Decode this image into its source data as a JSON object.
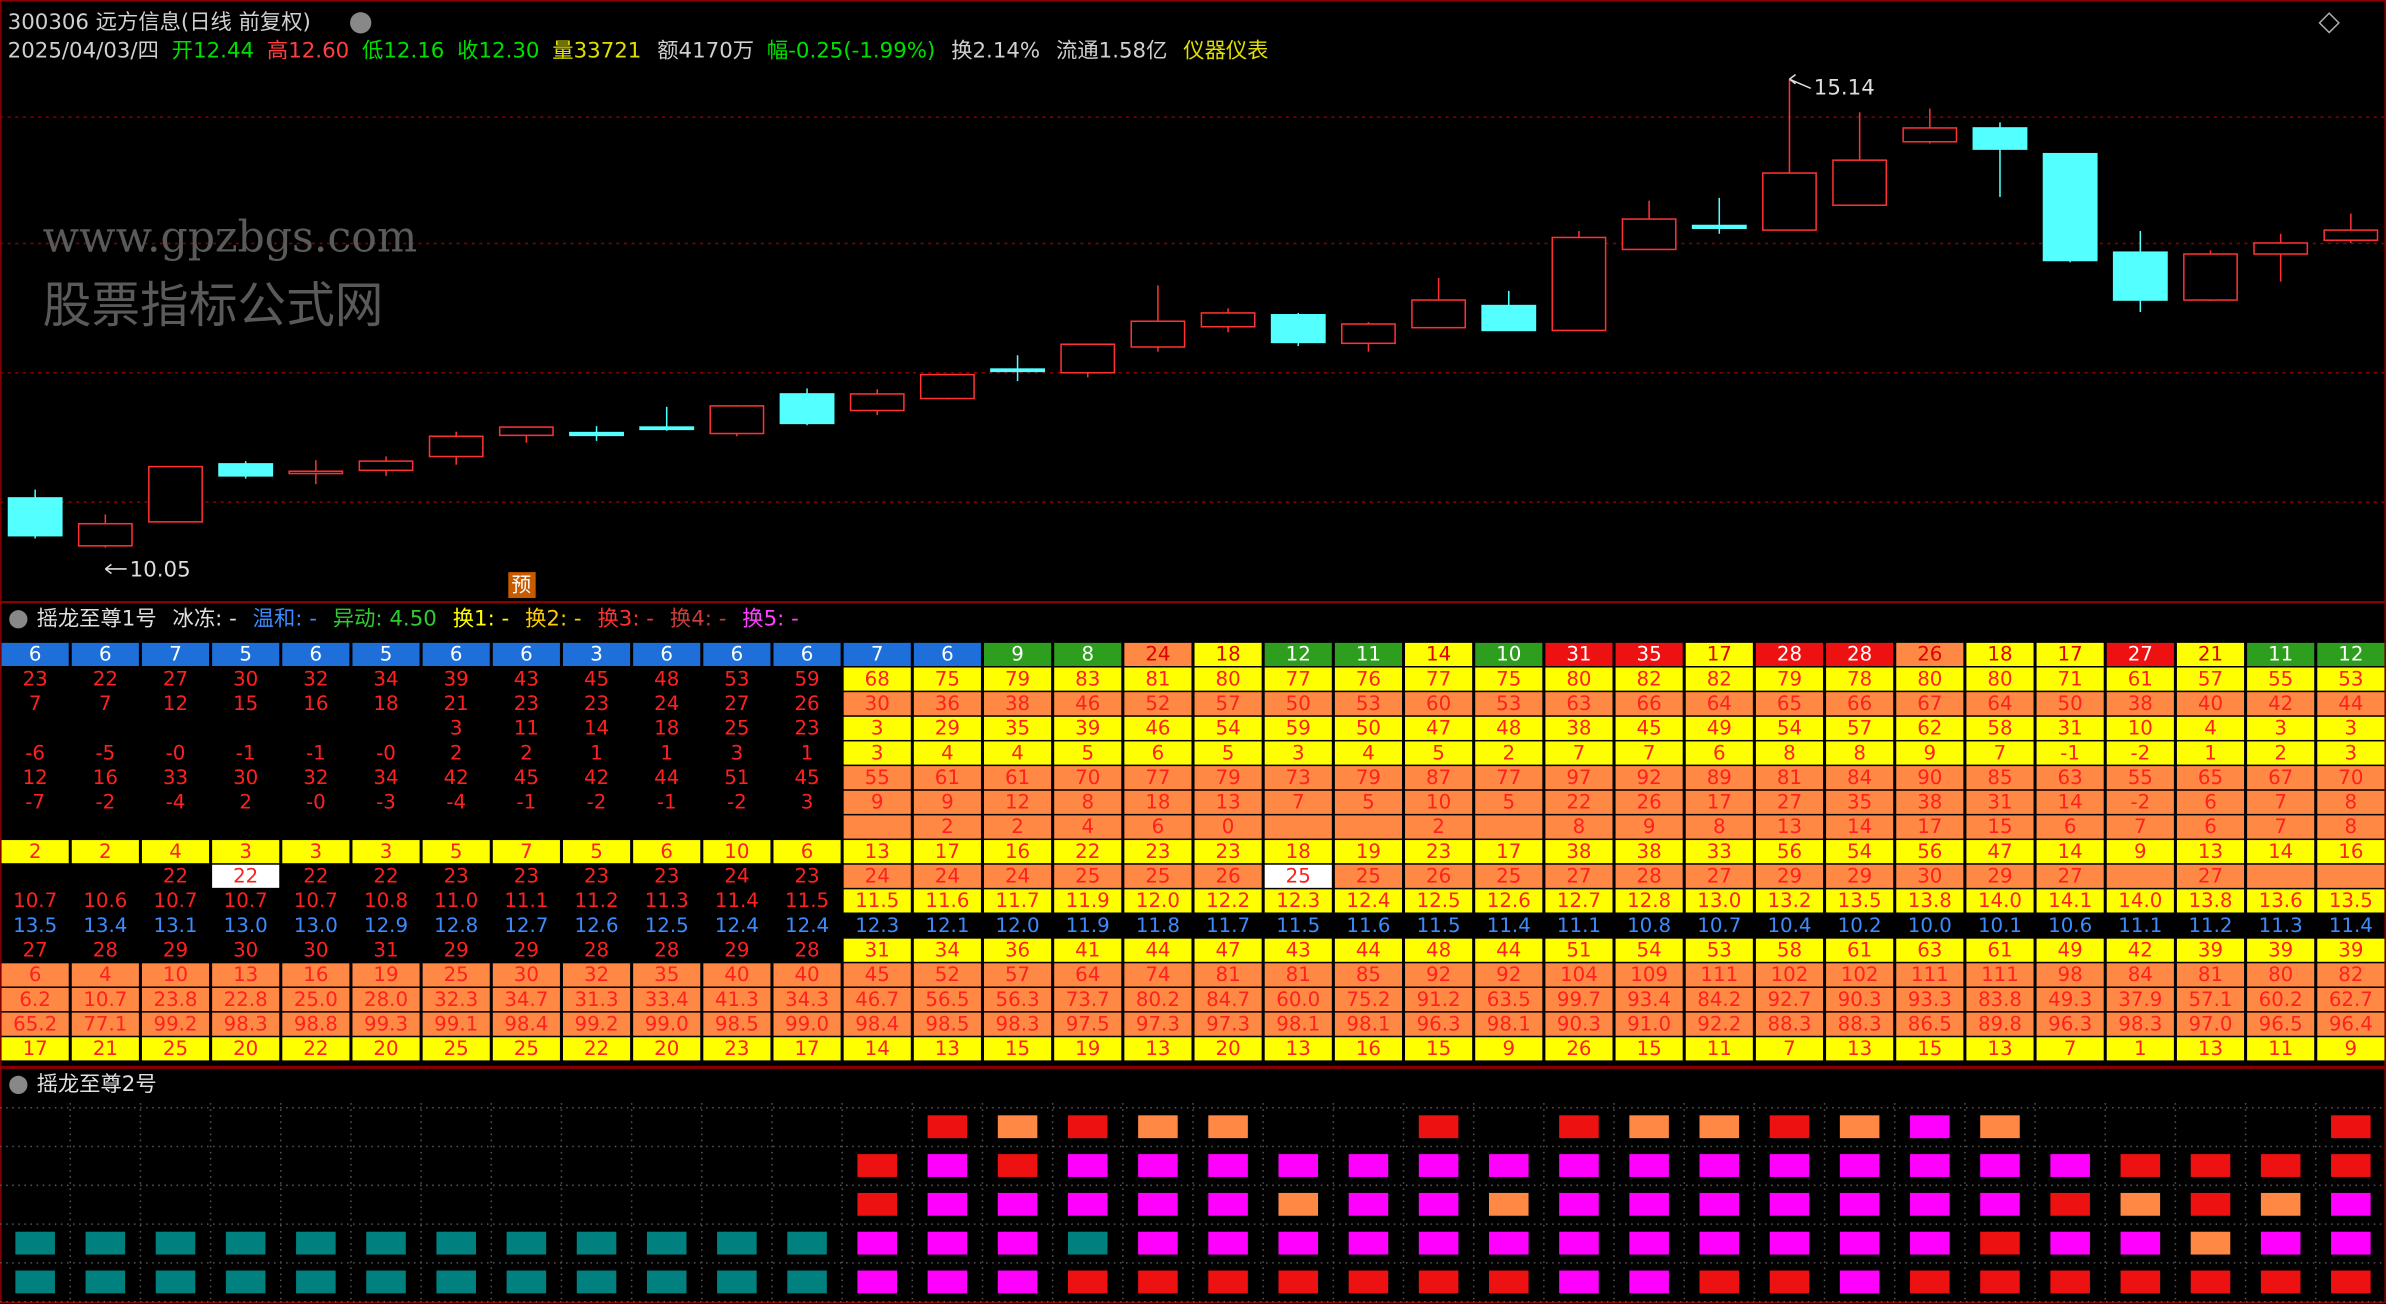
{
  "chart_data": {
    "type": "candlestick",
    "title": "300306 远方信息(日线 前复权)",
    "open": [
      10.59,
      10.07,
      10.33,
      10.96,
      10.86,
      10.89,
      11.04,
      11.27,
      11.3,
      11.36,
      11.29,
      11.72,
      11.54,
      11.67,
      11.99,
      11.95,
      12.23,
      12.45,
      12.58,
      12.27,
      12.44,
      12.68,
      12.41,
      13.29,
      13.55,
      13.5,
      13.77,
      14.46,
      14.61,
      14.33,
      13.26,
      12.74,
      13.24,
      13.39
    ],
    "high": [
      10.68,
      10.41,
      10.93,
      10.99,
      11.0,
      11.04,
      11.31,
      11.36,
      11.37,
      11.58,
      11.6,
      11.78,
      11.77,
      11.93,
      12.14,
      12.26,
      12.9,
      12.65,
      12.6,
      12.5,
      12.98,
      12.84,
      13.49,
      13.82,
      13.85,
      15.14,
      14.78,
      14.82,
      14.67,
      14.33,
      13.49,
      13.28,
      13.46,
      13.68
    ],
    "low": [
      10.15,
      10.05,
      10.33,
      10.8,
      10.74,
      10.83,
      10.95,
      11.19,
      11.21,
      11.32,
      11.26,
      11.38,
      11.49,
      11.66,
      11.86,
      11.9,
      12.18,
      12.39,
      12.24,
      12.18,
      12.44,
      12.41,
      12.41,
      13.29,
      13.46,
      13.5,
      13.77,
      14.44,
      13.86,
      13.15,
      12.61,
      12.73,
      12.94,
      13.36
    ],
    "close": [
      10.18,
      10.31,
      10.93,
      10.83,
      10.88,
      10.99,
      11.26,
      11.36,
      11.27,
      11.35,
      11.59,
      11.4,
      11.72,
      11.93,
      11.98,
      12.26,
      12.51,
      12.6,
      12.28,
      12.48,
      12.74,
      12.41,
      13.42,
      13.62,
      13.52,
      14.12,
      14.26,
      14.61,
      14.38,
      13.17,
      12.74,
      13.24,
      13.36,
      13.5
    ],
    "ylim": [
      9.47,
      16.0
    ],
    "up_color": "#ff3232",
    "down_color": "#54ffff",
    "annotations": [
      "15.14",
      "10.05",
      "预"
    ],
    "watermarks": [
      "www.gpzbgs.com",
      "股票指标公式网"
    ]
  },
  "quote_header": {
    "date": "2025/04/03/四",
    "open": "开12.44",
    "high": "高12.60",
    "low": "低12.16",
    "close": "收12.30",
    "volume": "量33721",
    "amount": "额4170万",
    "change": "幅-0.25(-1.99%)",
    "turnover": "换2.14%",
    "float": "流通1.58亿",
    "sector": "仪器仪表"
  },
  "indicator_panel": {
    "title": "摇龙至尊1号",
    "labels": [
      "冰冻: -",
      "温和: -",
      "异动: 4.50",
      "换1: -",
      "换2: -",
      "换3: -",
      "换4: -",
      "换5: -"
    ],
    "header_colors": [
      "#1e6fd9",
      "#1e6fd9",
      "#1e6fd9",
      "#1e6fd9",
      "#1e6fd9",
      "#1e6fd9",
      "#1e6fd9",
      "#1e6fd9",
      "#1e6fd9",
      "#1e6fd9",
      "#1e6fd9",
      "#1e6fd9",
      "#1e6fd9",
      "#1e6fd9",
      "#2e9e1e",
      "#2e9e1e",
      "#ff8844",
      "#ffff00",
      "#2e9e1e",
      "#2e9e1e",
      "#ffff00",
      "#2e9e1e",
      "#ee1111",
      "#ee1111",
      "#ffff00",
      "#ee1111",
      "#ee1111",
      "#ff8844",
      "#ffff00",
      "#ffff00",
      "#ee1111",
      "#ffff00",
      "#2e9e1e",
      "#2e9e1e"
    ],
    "rows": [
      [
        "6",
        "6",
        "7",
        "5",
        "6",
        "5",
        "6",
        "6",
        "3",
        "6",
        "6",
        "6",
        "7",
        "6",
        "9",
        "8",
        "24",
        "18",
        "12",
        "11",
        "14",
        "10",
        "31",
        "35",
        "17",
        "28",
        "28",
        "26",
        "18",
        "17",
        "27",
        "21",
        "11",
        "12"
      ],
      [
        "23",
        "22",
        "27",
        "30",
        "32",
        "34",
        "39",
        "43",
        "45",
        "48",
        "53",
        "59",
        "68",
        "75",
        "79",
        "83",
        "81",
        "80",
        "77",
        "76",
        "77",
        "75",
        "80",
        "82",
        "82",
        "79",
        "78",
        "80",
        "80",
        "71",
        "61",
        "57",
        "55",
        "53"
      ],
      [
        "7",
        "7",
        "12",
        "15",
        "16",
        "18",
        "21",
        "23",
        "23",
        "24",
        "27",
        "26",
        "30",
        "36",
        "38",
        "46",
        "52",
        "57",
        "50",
        "53",
        "60",
        "53",
        "63",
        "66",
        "64",
        "65",
        "66",
        "67",
        "64",
        "50",
        "38",
        "40",
        "42",
        "44"
      ],
      [
        null,
        null,
        null,
        null,
        null,
        null,
        "3",
        "11",
        "14",
        "18",
        "25",
        "23",
        "3",
        "29",
        "35",
        "39",
        "46",
        "54",
        "59",
        "50",
        "47",
        "48",
        "38",
        "45",
        "49",
        "54",
        "57",
        "62",
        "58",
        "31",
        "10",
        "4",
        "3",
        "3"
      ],
      [
        "-6",
        "-5",
        "-0",
        "-1",
        "-1",
        "-0",
        "2",
        "2",
        "1",
        "1",
        "3",
        "1",
        "3",
        "4",
        "4",
        "5",
        "6",
        "5",
        "3",
        "4",
        "5",
        "2",
        "7",
        "7",
        "6",
        "8",
        "8",
        "9",
        "7",
        "-1",
        "-2",
        "1",
        "2",
        "3"
      ],
      [
        "12",
        "16",
        "33",
        "30",
        "32",
        "34",
        "42",
        "45",
        "42",
        "44",
        "51",
        "45",
        "55",
        "61",
        "61",
        "70",
        "77",
        "79",
        "73",
        "79",
        "87",
        "77",
        "97",
        "92",
        "89",
        "81",
        "84",
        "90",
        "85",
        "63",
        "55",
        "65",
        "67",
        "70"
      ],
      [
        "-7",
        "-2",
        "-4",
        "2",
        "-0",
        "-3",
        "-4",
        "-1",
        "-2",
        "-1",
        "-2",
        "3",
        "9",
        "9",
        "12",
        "8",
        "18",
        "13",
        "7",
        "5",
        "10",
        "5",
        "22",
        "26",
        "17",
        "27",
        "35",
        "38",
        "31",
        "14",
        "-2",
        "6",
        "7",
        "8"
      ],
      [
        null,
        null,
        null,
        null,
        null,
        null,
        null,
        null,
        null,
        null,
        null,
        null,
        null,
        "2",
        "2",
        "4",
        "6",
        "0",
        null,
        null,
        "2",
        null,
        "8",
        "9",
        "8",
        "13",
        "14",
        "17",
        "15",
        "6",
        "7",
        "6",
        "7",
        "8"
      ],
      [
        "2",
        "2",
        "4",
        "3",
        "3",
        "3",
        "5",
        "7",
        "5",
        "6",
        "10",
        "6",
        "13",
        "17",
        "16",
        "22",
        "23",
        "23",
        "18",
        "19",
        "23",
        "17",
        "38",
        "38",
        "33",
        "56",
        "54",
        "56",
        "47",
        "14",
        "9",
        "13",
        "14",
        "16"
      ],
      [
        null,
        null,
        "22",
        "22",
        "22",
        "22",
        "23",
        "23",
        "23",
        "23",
        "24",
        "23",
        "24",
        "24",
        "24",
        "25",
        "25",
        "26",
        "25",
        "25",
        "26",
        "25",
        "27",
        "28",
        "27",
        "29",
        "29",
        "30",
        "29",
        "27",
        null,
        "27",
        null,
        null
      ],
      [
        "10.7",
        "10.6",
        "10.7",
        "10.7",
        "10.7",
        "10.8",
        "11.0",
        "11.1",
        "11.2",
        "11.3",
        "11.4",
        "11.5",
        "11.5",
        "11.6",
        "11.7",
        "11.9",
        "12.0",
        "12.2",
        "12.3",
        "12.4",
        "12.5",
        "12.6",
        "12.7",
        "12.8",
        "13.0",
        "13.2",
        "13.5",
        "13.8",
        "14.0",
        "14.1",
        "14.0",
        "13.8",
        "13.6",
        "13.5"
      ],
      [
        "13.5",
        "13.4",
        "13.1",
        "13.0",
        "13.0",
        "12.9",
        "12.8",
        "12.7",
        "12.6",
        "12.5",
        "12.4",
        "12.4",
        "12.3",
        "12.1",
        "12.0",
        "11.9",
        "11.8",
        "11.7",
        "11.5",
        "11.6",
        "11.5",
        "11.4",
        "11.1",
        "10.8",
        "10.7",
        "10.4",
        "10.2",
        "10.0",
        "10.1",
        "10.6",
        "11.1",
        "11.2",
        "11.3",
        "11.4"
      ],
      [
        "27",
        "28",
        "29",
        "30",
        "30",
        "31",
        "29",
        "29",
        "28",
        "28",
        "29",
        "28",
        "31",
        "34",
        "36",
        "41",
        "44",
        "47",
        "43",
        "44",
        "48",
        "44",
        "51",
        "54",
        "53",
        "58",
        "61",
        "63",
        "61",
        "49",
        "42",
        "39",
        "39",
        "39"
      ],
      [
        "6",
        "4",
        "10",
        "13",
        "16",
        "19",
        "25",
        "30",
        "32",
        "35",
        "40",
        "40",
        "45",
        "52",
        "57",
        "64",
        "74",
        "81",
        "81",
        "85",
        "92",
        "92",
        "104",
        "109",
        "111",
        "102",
        "102",
        "111",
        "111",
        "98",
        "84",
        "81",
        "80",
        "82"
      ],
      [
        "6.2",
        "10.7",
        "23.8",
        "22.8",
        "25.0",
        "28.0",
        "32.3",
        "34.7",
        "31.3",
        "33.4",
        "41.3",
        "34.3",
        "46.7",
        "56.5",
        "56.3",
        "73.7",
        "80.2",
        "84.7",
        "60.0",
        "75.2",
        "91.2",
        "63.5",
        "99.7",
        "93.4",
        "84.2",
        "92.7",
        "90.3",
        "93.3",
        "83.8",
        "49.3",
        "37.9",
        "57.1",
        "60.2",
        "62.7"
      ],
      [
        "65.2",
        "77.1",
        "99.2",
        "98.3",
        "98.8",
        "99.3",
        "99.1",
        "98.4",
        "99.2",
        "99.0",
        "98.5",
        "99.0",
        "98.4",
        "98.5",
        "98.3",
        "97.5",
        "97.3",
        "97.3",
        "98.1",
        "98.1",
        "96.3",
        "98.1",
        "90.3",
        "91.0",
        "92.2",
        "88.3",
        "88.3",
        "86.5",
        "89.8",
        "96.3",
        "98.3",
        "97.0",
        "96.5",
        "96.4"
      ],
      [
        "17",
        "21",
        "25",
        "20",
        "22",
        "20",
        "25",
        "25",
        "22",
        "20",
        "23",
        "17",
        "14",
        "13",
        "15",
        "19",
        "13",
        "20",
        "13",
        "16",
        "15",
        "9",
        "26",
        "15",
        "11",
        "7",
        "13",
        "15",
        "13",
        "7",
        "1",
        "13",
        "11",
        "9"
      ]
    ]
  },
  "signal_panel": {
    "title": "摇龙至尊2号",
    "grid": [
      [
        null,
        null,
        null,
        null,
        null,
        null,
        null,
        null,
        null,
        null,
        null,
        null,
        null,
        "#ee1111",
        "#ff8844",
        "#ee1111",
        "#ff8844",
        "#ff8844",
        null,
        null,
        "#ee1111",
        null,
        "#ee1111",
        "#ff8844",
        "#ff8844",
        "#ee1111",
        "#ff8844",
        "#ff00ff",
        "#ff8844",
        null,
        null,
        null,
        null,
        "#ee1111"
      ],
      [
        null,
        null,
        null,
        null,
        null,
        null,
        null,
        null,
        null,
        null,
        null,
        null,
        "#ee1111",
        "#ff00ff",
        "#ee1111",
        "#ff00ff",
        "#ff00ff",
        "#ff00ff",
        "#ff00ff",
        "#ff00ff",
        "#ff00ff",
        "#ff00ff",
        "#ff00ff",
        "#ff00ff",
        "#ff00ff",
        "#ff00ff",
        "#ff00ff",
        "#ff00ff",
        "#ff00ff",
        "#ff00ff",
        "#ee1111",
        "#ee1111",
        "#ee1111",
        "#ee1111"
      ],
      [
        null,
        null,
        null,
        null,
        null,
        null,
        null,
        null,
        null,
        null,
        null,
        null,
        "#ee1111",
        "#ff00ff",
        "#ff00ff",
        "#ff00ff",
        "#ff00ff",
        "#ff00ff",
        "#ff8844",
        "#ff00ff",
        "#ff00ff",
        "#ff8844",
        "#ff00ff",
        "#ff00ff",
        "#ff00ff",
        "#ff00ff",
        "#ff00ff",
        "#ff00ff",
        "#ff00ff",
        "#ee1111",
        "#ff8844",
        "#ee1111",
        "#ff8844",
        "#ff00ff"
      ],
      [
        "#00807f",
        "#00807f",
        "#00807f",
        "#00807f",
        "#00807f",
        "#00807f",
        "#00807f",
        "#00807f",
        "#00807f",
        "#00807f",
        "#00807f",
        "#00807f",
        "#ff00ff",
        "#ff00ff",
        "#ff00ff",
        "#00807f",
        "#ff00ff",
        "#ff00ff",
        "#ff00ff",
        "#ff00ff",
        "#ff00ff",
        "#ff00ff",
        "#ff00ff",
        "#ff00ff",
        "#ff00ff",
        "#ff00ff",
        "#ff00ff",
        "#ff00ff",
        "#ee1111",
        "#ff00ff",
        "#ff00ff",
        "#ff8844",
        "#ff00ff",
        "#ff00ff"
      ],
      [
        "#00807f",
        "#00807f",
        "#00807f",
        "#00807f",
        "#00807f",
        "#00807f",
        "#00807f",
        "#00807f",
        "#00807f",
        "#00807f",
        "#00807f",
        "#00807f",
        "#ff00ff",
        "#ff00ff",
        "#ff00ff",
        "#ee1111",
        "#ee1111",
        "#ee1111",
        "#ee1111",
        "#ee1111",
        "#ee1111",
        "#ee1111",
        "#ff00ff",
        "#ff00ff",
        "#ee1111",
        "#ee1111",
        "#ff00ff",
        "#ee1111",
        "#ee1111",
        "#ee1111",
        "#ee1111",
        "#ee1111",
        "#ee1111",
        "#ee1111"
      ]
    ]
  }
}
